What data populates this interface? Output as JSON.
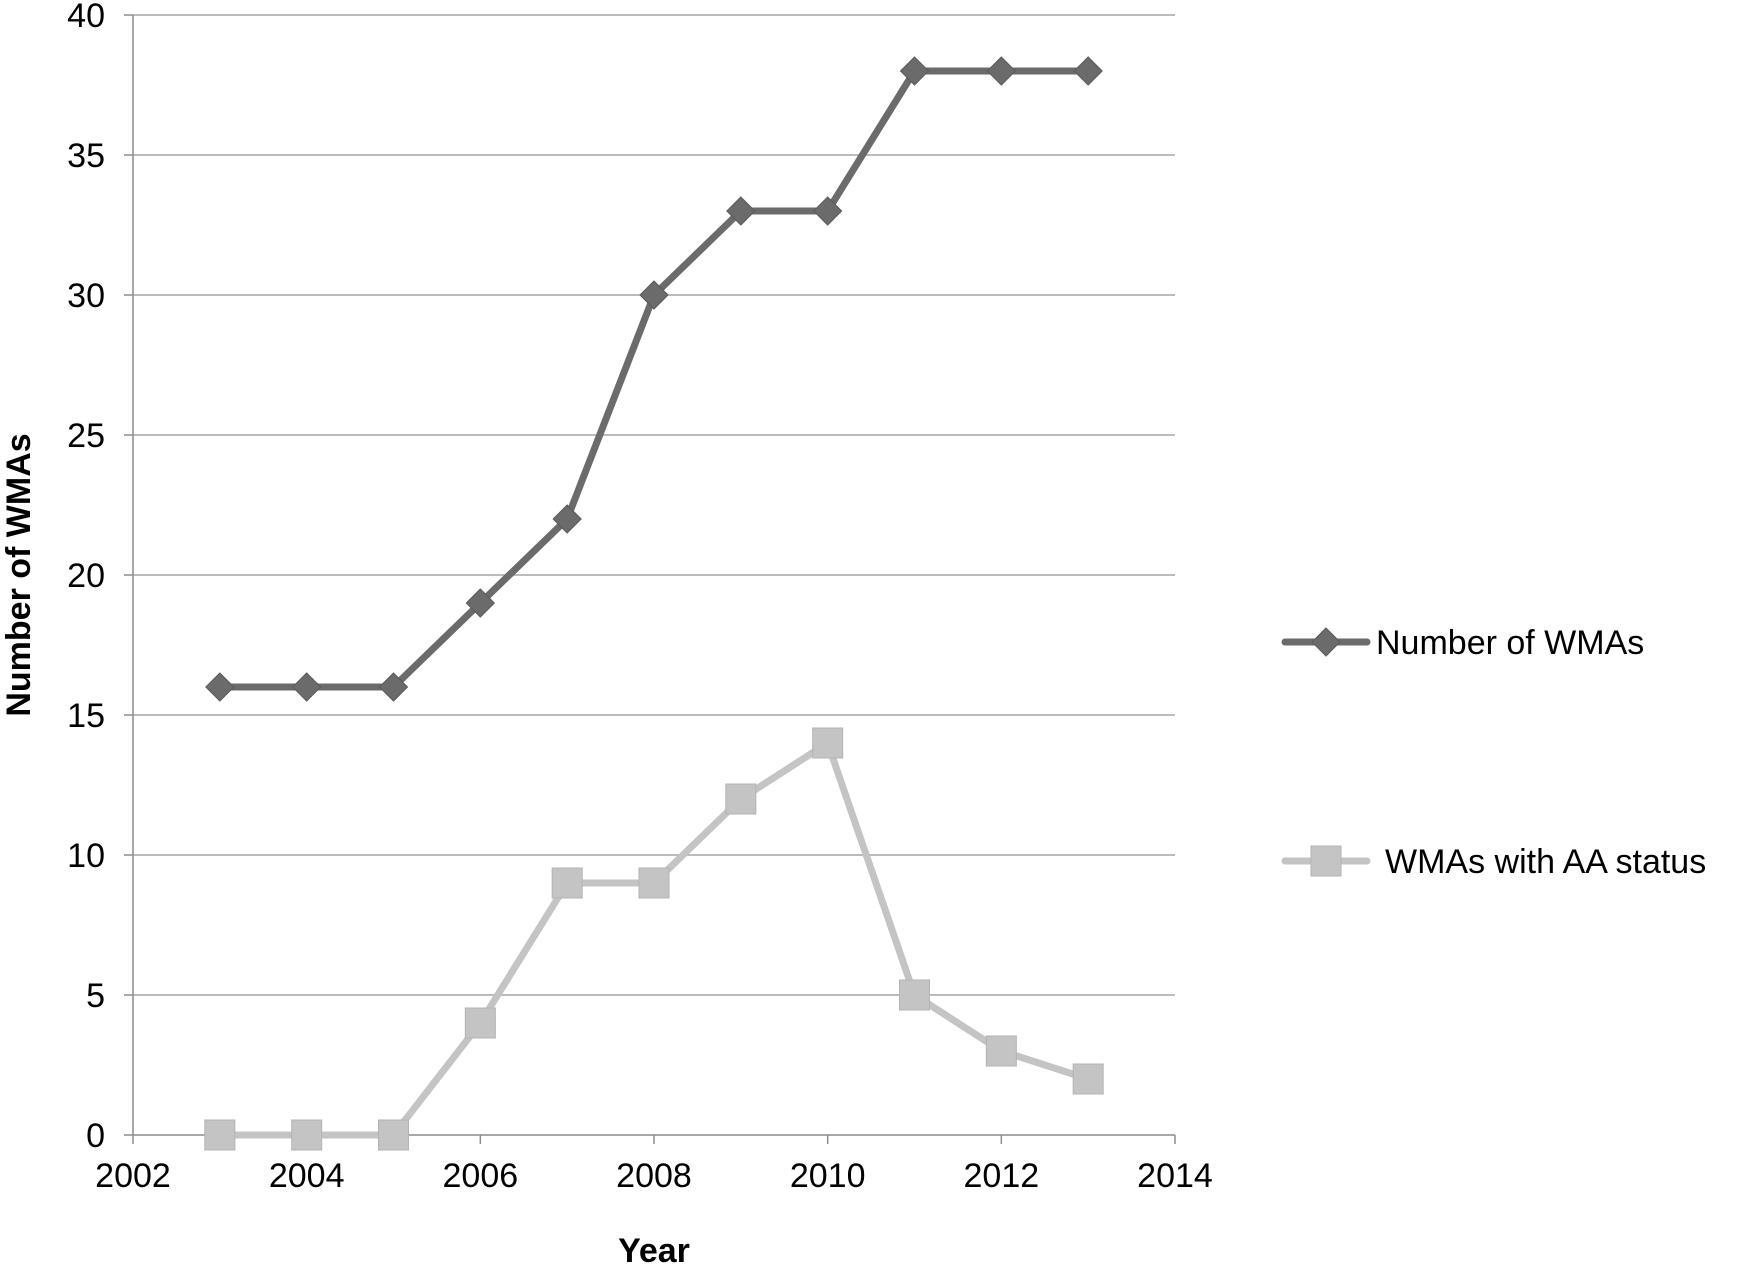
{
  "chart_data": {
    "type": "line",
    "title": "",
    "xlabel": "Year",
    "ylabel": "Number  of  WMAs",
    "xlim": [
      2002,
      2014
    ],
    "ylim": [
      0,
      40
    ],
    "x_ticks": [
      2002,
      2004,
      2006,
      2008,
      2010,
      2012,
      2014
    ],
    "y_ticks": [
      0,
      5,
      10,
      15,
      20,
      25,
      30,
      35,
      40
    ],
    "grid": "horizontal",
    "legend_position": "right",
    "x": [
      2003,
      2004,
      2005,
      2006,
      2007,
      2008,
      2009,
      2010,
      2011,
      2012,
      2013
    ],
    "series": [
      {
        "name": "Number of WMAs",
        "color": "#6b6b6b",
        "marker": "diamond",
        "values": [
          16,
          16,
          16,
          19,
          22,
          30,
          33,
          33,
          38,
          38,
          38
        ]
      },
      {
        "name": "WMAs with AA status",
        "color": "#c4c4c4",
        "marker": "square",
        "values": [
          0,
          0,
          0,
          4,
          9,
          9,
          12,
          14,
          5,
          3,
          2
        ]
      }
    ]
  }
}
